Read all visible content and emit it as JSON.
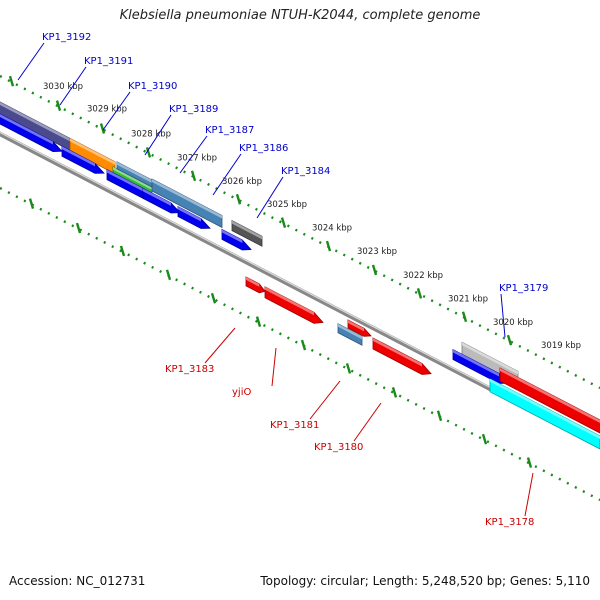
{
  "title": "Klebsiella pneumoniae NTUH-K2044, complete genome",
  "footer": {
    "accession": "Accession: NC_012731",
    "topology": "Topology: circular; Length: 5,248,520 bp; Genes: 5,110"
  },
  "colors": {
    "label_forward": "#0000cc",
    "label_reverse": "#cc0000",
    "backbone": "#888888",
    "tick": "#1a8a1a"
  },
  "ticks": [
    "3030 kbp",
    "3029 kbp",
    "3028 kbp",
    "3027 kbp",
    "3026 kbp",
    "3025 kbp",
    "3024 kbp",
    "3023 kbp",
    "3022 kbp",
    "3021 kbp",
    "3020 kbp",
    "3019 kbp"
  ],
  "genes": [
    {
      "name": "KP1_3192",
      "strand": "+",
      "color": "#4a4a8c"
    },
    {
      "name": "KP1_3191",
      "strand": "+",
      "color": "#ff8c00"
    },
    {
      "name": "KP1_3190",
      "strand": "+",
      "color": "#33bb33"
    },
    {
      "name": "KP1_3189",
      "strand": "+",
      "color": "#4682b4"
    },
    {
      "name": "KP1_3187",
      "strand": "+",
      "color": "#4682b4"
    },
    {
      "name": "KP1_3186",
      "strand": "+",
      "color": "#0000ee"
    },
    {
      "name": "KP1_3184",
      "strand": "+",
      "color": "#555555"
    },
    {
      "name": "KP1_3179",
      "strand": "+",
      "color": "#bbbbbb"
    },
    {
      "name": "KP1_3183",
      "strand": "-",
      "color": "#ee0000"
    },
    {
      "name": "yjiO",
      "strand": "-",
      "color": "#ee0000"
    },
    {
      "name": "KP1_3181",
      "strand": "-",
      "color": "#4682b4"
    },
    {
      "name": "KP1_3180",
      "strand": "-",
      "color": "#ee0000"
    },
    {
      "name": "KP1_3178",
      "strand": "-",
      "color": "#00ffff"
    }
  ]
}
